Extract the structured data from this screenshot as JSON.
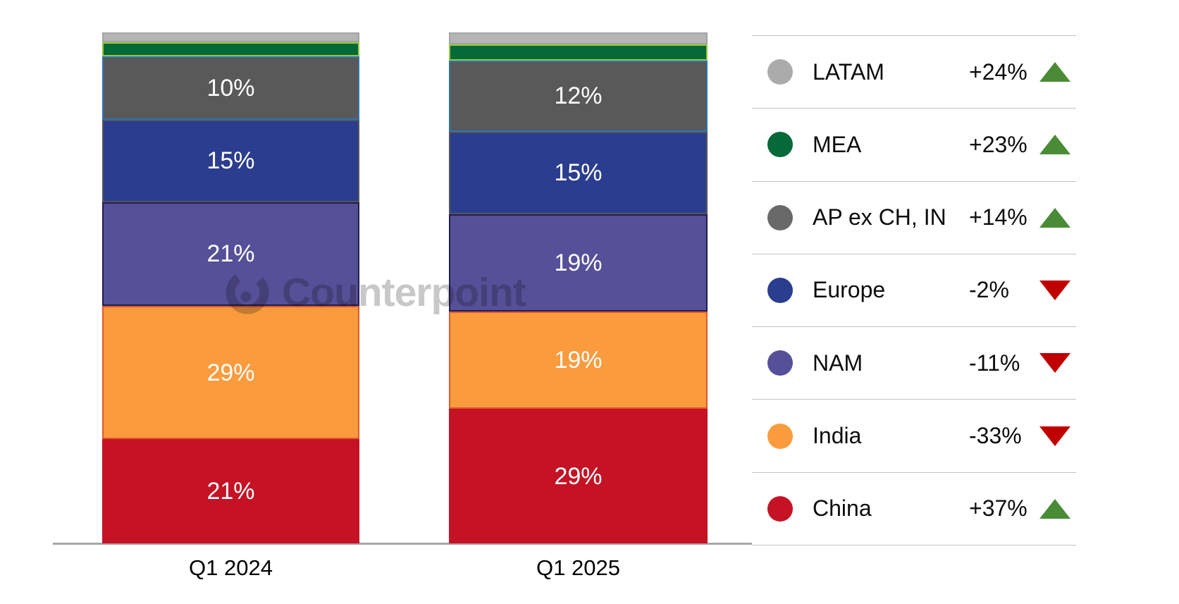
{
  "watermark": {
    "text": "Counterpoint"
  },
  "chart_data": {
    "type": "bar",
    "stacked": true,
    "unit": "percent share of 100%",
    "title": "",
    "xlabel": "",
    "ylabel": "",
    "ylim": [
      0,
      100
    ],
    "grid": false,
    "legend_position": "right",
    "categories": [
      "Q1 2024",
      "Q1 2025"
    ],
    "series": [
      {
        "name": "LATAM",
        "values": [
          2,
          2.5
        ],
        "labels": [
          null,
          null
        ],
        "change": "+24%",
        "trend": "up",
        "color": "#b5b5b5",
        "dot_color": "#ababab",
        "border": "#a3a3a3"
      },
      {
        "name": "MEA",
        "values": [
          3,
          3.5
        ],
        "labels": [
          null,
          null
        ],
        "change": "+23%",
        "trend": "up",
        "color": "#056938",
        "dot_color": "#056938",
        "border": "#97c93d"
      },
      {
        "name": "AP ex CH, IN",
        "values": [
          10,
          12
        ],
        "labels": [
          "10%",
          "12%"
        ],
        "change": "+14%",
        "trend": "up",
        "color": "#595959",
        "dot_color": "#696969",
        "border": "#2e75b6"
      },
      {
        "name": "Europe",
        "values": [
          15,
          15
        ],
        "labels": [
          "15%",
          "15%"
        ],
        "change": "-2%",
        "trend": "down",
        "color": "#2b3d8e",
        "dot_color": "#2b3d8e",
        "border": "#55555e"
      },
      {
        "name": "NAM",
        "values": [
          21,
          19
        ],
        "labels": [
          "21%",
          "19%"
        ],
        "change": "-11%",
        "trend": "down",
        "color": "#565098",
        "dot_color": "#565098",
        "border": "#221e50"
      },
      {
        "name": "India",
        "values": [
          29,
          19
        ],
        "labels": [
          "29%",
          "19%"
        ],
        "change": "-33%",
        "trend": "down",
        "color": "#fa9b3d",
        "dot_color": "#fa9b3d",
        "border": "#e0592e"
      },
      {
        "name": "China",
        "values": [
          21,
          29
        ],
        "labels": [
          "21%",
          "29%"
        ],
        "change": "+37%",
        "trend": "up",
        "color": "#c51225",
        "dot_color": "#c51225",
        "border": "#c51225"
      }
    ],
    "trend_colors": {
      "up": "#4a8c35",
      "down": "#c00000"
    }
  }
}
